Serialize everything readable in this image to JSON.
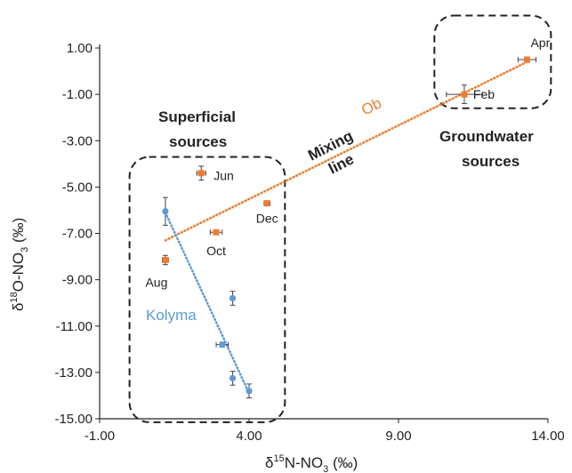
{
  "chart_data": {
    "type": "scatter",
    "xlim": [
      -1,
      14
    ],
    "ylim": [
      -15,
      1
    ],
    "xticks": [
      "-1.00",
      "4.00",
      "9.00",
      "14.00"
    ],
    "xtick_values": [
      -1,
      4,
      9,
      14
    ],
    "yticks": [
      "1.00",
      "-1.00",
      "-3.00",
      "-5.00",
      "-7.00",
      "-9.00",
      "-11.00",
      "-13.00",
      "-15.00"
    ],
    "ytick_values": [
      1,
      -1,
      -3,
      -5,
      -7,
      -9,
      -11,
      -13,
      -15
    ],
    "xlabel": {
      "main": "δ",
      "sup": "15",
      "rest": "N-NO",
      "sub": "3",
      "tail": " (‰)"
    },
    "ylabel": {
      "main": "δ",
      "sup": "18",
      "rest": "O-NO",
      "sub": "3",
      "tail": " (‰)"
    },
    "grid": false,
    "colors": {
      "ob": "#ED7D31",
      "kolyma": "#5B9BD5",
      "text": "#222222",
      "box": "#222222"
    },
    "series": [
      {
        "name": "Ob",
        "marker": "square",
        "points": [
          {
            "x": 13.3,
            "y": 0.5,
            "xerr": 0.3,
            "yerr": 0.1,
            "label": "Apr"
          },
          {
            "x": 11.2,
            "y": -1.0,
            "xerr": 0.6,
            "yerr": 0.4,
            "label": "Feb"
          },
          {
            "x": 2.4,
            "y": -4.4,
            "xerr": 0.15,
            "yerr": 0.3,
            "label": "Jun"
          },
          {
            "x": 4.6,
            "y": -5.7,
            "xerr": 0.1,
            "yerr": 0.1,
            "label": "Dec"
          },
          {
            "x": 2.9,
            "y": -6.95,
            "xerr": 0.2,
            "yerr": 0.1,
            "label": "Oct"
          },
          {
            "x": 1.2,
            "y": -8.15,
            "xerr": 0.1,
            "yerr": 0.2,
            "label": "Aug"
          }
        ]
      },
      {
        "name": "Kolyma",
        "marker": "circle",
        "points": [
          {
            "x": 1.2,
            "y": -6.05,
            "xerr": 0.05,
            "yerr": 0.6
          },
          {
            "x": 3.45,
            "y": -9.8,
            "xerr": 0.05,
            "yerr": 0.3
          },
          {
            "x": 3.1,
            "y": -11.8,
            "xerr": 0.2,
            "yerr": 0.1
          },
          {
            "x": 3.45,
            "y": -13.25,
            "xerr": 0.05,
            "yerr": 0.3
          },
          {
            "x": 4.0,
            "y": -13.8,
            "xerr": 0.05,
            "yerr": 0.3
          }
        ]
      }
    ],
    "trendlines": [
      {
        "series": "Ob",
        "from": [
          1.2,
          -7.3
        ],
        "to": [
          13.3,
          0.4
        ]
      },
      {
        "series": "Kolyma",
        "from": [
          1.2,
          -6.1
        ],
        "to": [
          4.0,
          -13.9
        ]
      }
    ],
    "annotations": {
      "ob_series": "Ob",
      "kolyma_series": "Kolyma",
      "mixing_line_1": "Mixing",
      "mixing_line_2": "line",
      "superficial_1": "Superficial",
      "superficial_2": "sources",
      "groundwater_1": "Groundwater",
      "groundwater_2": "sources"
    },
    "regions": [
      {
        "name": "superficial-sources-box",
        "x": [
          0.0,
          5.2
        ],
        "y": [
          -15.15,
          -3.7
        ]
      },
      {
        "name": "groundwater-sources-box",
        "x": [
          10.2,
          14.1
        ],
        "y": [
          2.4,
          -1.6
        ]
      }
    ]
  }
}
